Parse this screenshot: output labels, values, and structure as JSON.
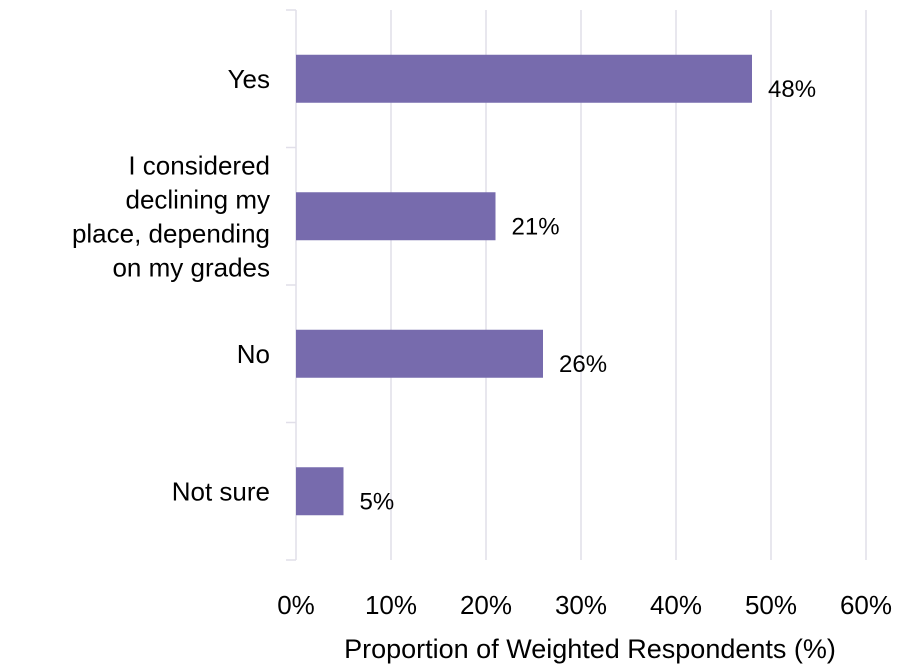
{
  "chart_data": {
    "type": "bar",
    "orientation": "horizontal",
    "categories": [
      "Yes",
      "I considered declining my place, depending on my grades",
      "No",
      "Not sure"
    ],
    "category_lines": [
      [
        "Yes"
      ],
      [
        "I considered",
        "declining my",
        "place, depending",
        "on my grades"
      ],
      [
        "No"
      ],
      [
        "Not sure"
      ]
    ],
    "values": [
      48,
      21,
      26,
      5
    ],
    "value_labels": [
      "48%",
      "21%",
      "26%",
      "5%"
    ],
    "xticks": [
      0,
      10,
      20,
      30,
      40,
      50,
      60
    ],
    "xtick_labels": [
      "0%",
      "10%",
      "20%",
      "30%",
      "40%",
      "50%",
      "60%"
    ],
    "xlim": [
      0,
      60
    ],
    "xlabel": "Proportion of Weighted Respondents (%)",
    "ylabel": "",
    "title": "",
    "grid": "vertical",
    "legend": "none",
    "bar_color": "#776bad",
    "grid_color": "#e1dfe9"
  }
}
